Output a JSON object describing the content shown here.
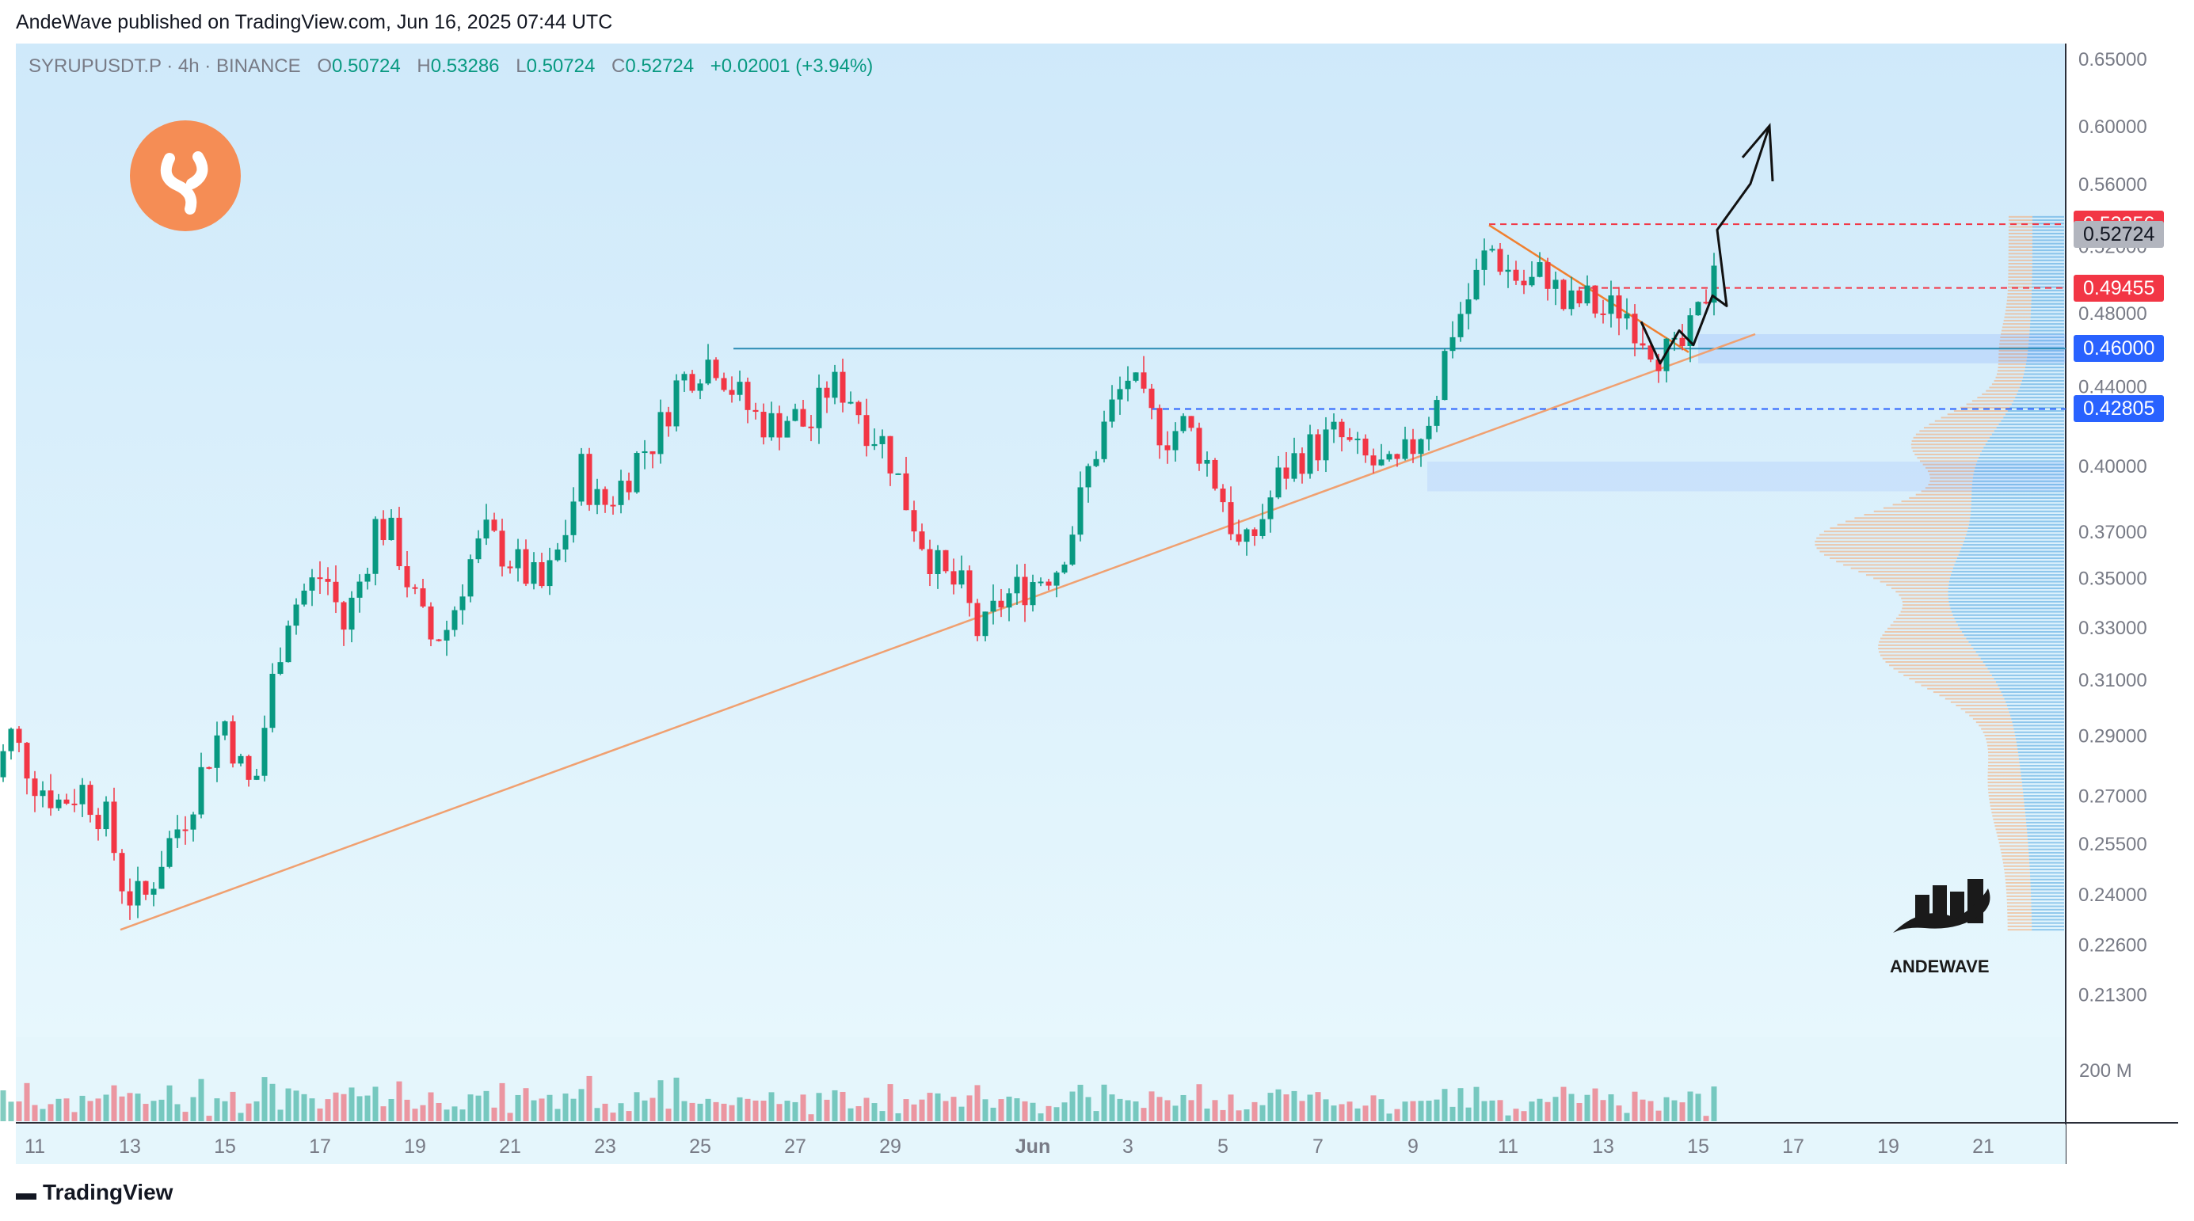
{
  "header": {
    "published": "AndeWave published on TradingView.com, Jun 16, 2025 07:44 UTC"
  },
  "legend": {
    "symbol": "SYRUPUSDT.P · 4h · BINANCE",
    "o_label": "O",
    "o": "0.50724",
    "h_label": "H",
    "h": "0.53286",
    "l_label": "L",
    "l": "0.50724",
    "c_label": "C",
    "c": "0.52724",
    "change": "+0.02001 (+3.94%)"
  },
  "price_tags": [
    {
      "label": "0.53356",
      "color": "#f23645"
    },
    {
      "label": "0.52724",
      "color": "#b2b5be",
      "text_color": "#131722"
    },
    {
      "label": "0.49455",
      "color": "#f23645"
    },
    {
      "label": "0.46000",
      "color": "#2962ff"
    },
    {
      "label": "0.42805",
      "color": "#2962ff"
    }
  ],
  "watermark": {
    "text": "ANDEWAVE"
  },
  "footer": {
    "brand": "TradingView"
  },
  "colors": {
    "up": "#089981",
    "down": "#f23645",
    "bg_top": "#d3ecfb",
    "bg_bottom": "#e6f6fc"
  },
  "chart_data": {
    "type": "candlestick",
    "title": "SYRUPUSDT.P · 4h · BINANCE",
    "x_tick_labels": [
      "11",
      "13",
      "15",
      "17",
      "19",
      "21",
      "23",
      "25",
      "27",
      "29",
      "Jun",
      "3",
      "5",
      "7",
      "9",
      "11",
      "13",
      "15",
      "17",
      "19",
      "21"
    ],
    "y_tick_labels": [
      "0.65000",
      "0.60000",
      "0.56000",
      "0.52000",
      "0.48000",
      "0.44000",
      "0.40000",
      "0.37000",
      "0.35000",
      "0.33000",
      "0.31000",
      "0.29000",
      "0.27000",
      "0.25500",
      "0.24000",
      "0.22600",
      "0.21300"
    ],
    "y_ticks": [
      0.65,
      0.6,
      0.56,
      0.52,
      0.48,
      0.44,
      0.4,
      0.37,
      0.35,
      0.33,
      0.31,
      0.29,
      0.27,
      0.255,
      0.24,
      0.226,
      0.213
    ],
    "y_scale": "log",
    "ylim": [
      0.205,
      0.66
    ],
    "volume_axis_label": "200 M",
    "key_levels": [
      {
        "price": 0.53356,
        "style": "dashed",
        "color": "#f23645"
      },
      {
        "price": 0.49455,
        "style": "dashed",
        "color": "#f23645"
      },
      {
        "price": 0.46,
        "style": "solid",
        "color": "#2b8bb3"
      },
      {
        "price": 0.42805,
        "style": "dashed",
        "color": "#2962ff"
      }
    ],
    "trendlines": [
      {
        "from_day": 12.8,
        "from_price": 0.23,
        "to_day": 17.2,
        "to_price": 0.468,
        "color": "#f0a070",
        "note": "rising support"
      },
      {
        "from_day": 11.6,
        "from_price": 0.533,
        "to_day": 15.8,
        "to_price": 0.458,
        "color": "#f08030",
        "note": "falling resistance"
      }
    ],
    "price_path": [
      {
        "day": 10.0,
        "price": 0.27
      },
      {
        "day": 10.5,
        "price": 0.29
      },
      {
        "day": 11.0,
        "price": 0.275
      },
      {
        "day": 11.5,
        "price": 0.268
      },
      {
        "day": 12.0,
        "price": 0.272
      },
      {
        "day": 12.5,
        "price": 0.262
      },
      {
        "day": 12.9,
        "price": 0.24
      },
      {
        "day": 13.3,
        "price": 0.238
      },
      {
        "day": 13.7,
        "price": 0.252
      },
      {
        "day": 14.2,
        "price": 0.265
      },
      {
        "day": 14.7,
        "price": 0.285
      },
      {
        "day": 15.0,
        "price": 0.295
      },
      {
        "day": 15.3,
        "price": 0.28
      },
      {
        "day": 15.6,
        "price": 0.27
      },
      {
        "day": 15.9,
        "price": 0.3
      },
      {
        "day": 16.3,
        "price": 0.335
      },
      {
        "day": 16.7,
        "price": 0.345
      },
      {
        "day": 17.1,
        "price": 0.352
      },
      {
        "day": 17.5,
        "price": 0.33
      },
      {
        "day": 17.9,
        "price": 0.352
      },
      {
        "day": 18.2,
        "price": 0.375
      },
      {
        "day": 18.6,
        "price": 0.365
      },
      {
        "day": 18.9,
        "price": 0.345
      },
      {
        "day": 19.3,
        "price": 0.325
      },
      {
        "day": 19.7,
        "price": 0.33
      },
      {
        "day": 20.1,
        "price": 0.355
      },
      {
        "day": 20.5,
        "price": 0.368
      },
      {
        "day": 20.9,
        "price": 0.36
      },
      {
        "day": 21.3,
        "price": 0.352
      },
      {
        "day": 21.7,
        "price": 0.345
      },
      {
        "day": 22.1,
        "price": 0.365
      },
      {
        "day": 22.5,
        "price": 0.398
      },
      {
        "day": 22.9,
        "price": 0.38
      },
      {
        "day": 23.3,
        "price": 0.39
      },
      {
        "day": 23.7,
        "price": 0.405
      },
      {
        "day": 24.1,
        "price": 0.415
      },
      {
        "day": 24.5,
        "price": 0.44
      },
      {
        "day": 24.9,
        "price": 0.45
      },
      {
        "day": 25.3,
        "price": 0.455
      },
      {
        "day": 25.7,
        "price": 0.438
      },
      {
        "day": 26.1,
        "price": 0.425
      },
      {
        "day": 26.5,
        "price": 0.42
      },
      {
        "day": 26.9,
        "price": 0.425
      },
      {
        "day": 27.3,
        "price": 0.418
      },
      {
        "day": 27.7,
        "price": 0.44
      },
      {
        "day": 28.1,
        "price": 0.438
      },
      {
        "day": 28.5,
        "price": 0.42
      },
      {
        "day": 28.9,
        "price": 0.41
      },
      {
        "day": 29.3,
        "price": 0.385
      },
      {
        "day": 29.7,
        "price": 0.365
      },
      {
        "day": 30.1,
        "price": 0.35
      },
      {
        "day": 30.5,
        "price": 0.345
      },
      {
        "day": 30.9,
        "price": 0.325
      },
      {
        "day": 31.3,
        "price": 0.34
      },
      {
        "day": 31.7,
        "price": 0.345
      },
      {
        "day": 32.1,
        "price": 0.35
      },
      {
        "day": 32.5,
        "price": 0.355
      },
      {
        "day": 32.9,
        "price": 0.375
      },
      {
        "day": 33.2,
        "price": 0.4
      },
      {
        "day": 33.6,
        "price": 0.425
      },
      {
        "day": 34.0,
        "price": 0.445
      },
      {
        "day": 34.4,
        "price": 0.425
      },
      {
        "day": 34.8,
        "price": 0.415
      },
      {
        "day": 35.2,
        "price": 0.42
      },
      {
        "day": 35.6,
        "price": 0.405
      },
      {
        "day": 36.0,
        "price": 0.385
      },
      {
        "day": 36.4,
        "price": 0.358
      },
      {
        "day": 36.8,
        "price": 0.375
      },
      {
        "day": 37.2,
        "price": 0.395
      },
      {
        "day": 37.6,
        "price": 0.405
      },
      {
        "day": 38.0,
        "price": 0.41
      },
      {
        "day": 38.4,
        "price": 0.415
      },
      {
        "day": 38.8,
        "price": 0.405
      },
      {
        "day": 39.2,
        "price": 0.4
      },
      {
        "day": 39.6,
        "price": 0.395
      },
      {
        "day": 40.0,
        "price": 0.41
      },
      {
        "day": 40.4,
        "price": 0.428
      },
      {
        "day": 40.8,
        "price": 0.47
      },
      {
        "day": 41.2,
        "price": 0.49
      },
      {
        "day": 41.6,
        "price": 0.52
      },
      {
        "day": 42.0,
        "price": 0.505
      },
      {
        "day": 42.4,
        "price": 0.495
      },
      {
        "day": 42.8,
        "price": 0.505
      },
      {
        "day": 43.2,
        "price": 0.482
      },
      {
        "day": 43.6,
        "price": 0.488
      },
      {
        "day": 44.0,
        "price": 0.48
      },
      {
        "day": 44.4,
        "price": 0.484
      },
      {
        "day": 44.8,
        "price": 0.47
      },
      {
        "day": 45.2,
        "price": 0.458
      },
      {
        "day": 45.5,
        "price": 0.455
      },
      {
        "day": 45.8,
        "price": 0.465
      },
      {
        "day": 46.0,
        "price": 0.478
      },
      {
        "day": 46.2,
        "price": 0.495
      },
      {
        "day": 46.4,
        "price": 0.527
      }
    ],
    "projection": [
      {
        "day": 46.4,
        "price": 0.53
      },
      {
        "day": 47.1,
        "price": 0.56
      },
      {
        "day": 47.5,
        "price": 0.6
      }
    ]
  }
}
